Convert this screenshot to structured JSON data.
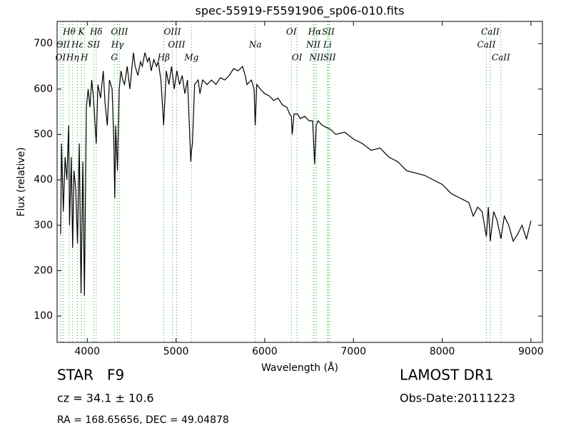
{
  "chart_data": {
    "type": "line",
    "title": "spec-55919-F5591906_sp06-010.fits",
    "x_label": "Wavelength (Å)",
    "y_label": "Flux (relative)",
    "color": "#000000",
    "line_color": "#33aa33",
    "xlim": [
      3660,
      9130
    ],
    "ylim": [
      42,
      749
    ],
    "xticks": [
      4000,
      5000,
      6000,
      7000,
      8000,
      9000
    ],
    "yticks": [
      100,
      200,
      300,
      400,
      500,
      600,
      700
    ],
    "x": [
      3700,
      3710,
      3730,
      3750,
      3770,
      3790,
      3800,
      3820,
      3835,
      3850,
      3870,
      3890,
      3910,
      3930,
      3950,
      3968,
      3990,
      4010,
      4030,
      4050,
      4070,
      4101,
      4120,
      4150,
      4180,
      4200,
      4226,
      4250,
      4280,
      4300,
      4310,
      4320,
      4340,
      4360,
      4380,
      4400,
      4420,
      4450,
      4480,
      4500,
      4520,
      4540,
      4570,
      4600,
      4620,
      4650,
      4680,
      4700,
      4720,
      4750,
      4780,
      4800,
      4830,
      4861,
      4890,
      4920,
      4950,
      4980,
      5010,
      5040,
      5070,
      5100,
      5130,
      5167,
      5172,
      5185,
      5210,
      5250,
      5270,
      5300,
      5350,
      5400,
      5450,
      5500,
      5550,
      5600,
      5650,
      5700,
      5750,
      5780,
      5800,
      5850,
      5880,
      5893,
      5910,
      5950,
      6000,
      6050,
      6100,
      6150,
      6200,
      6250,
      6280,
      6300,
      6310,
      6330,
      6370,
      6400,
      6450,
      6500,
      6540,
      6563,
      6580,
      6600,
      6650,
      6700,
      6750,
      6800,
      6900,
      7000,
      7100,
      7200,
      7300,
      7400,
      7500,
      7600,
      7700,
      7800,
      7900,
      8000,
      8100,
      8200,
      8300,
      8350,
      8400,
      8450,
      8498,
      8520,
      8542,
      8580,
      8620,
      8662,
      8700,
      8750,
      8800,
      8850,
      8900,
      8950,
      9000
    ],
    "values": [
      280,
      480,
      330,
      450,
      400,
      520,
      300,
      450,
      250,
      420,
      380,
      260,
      480,
      150,
      440,
      145,
      560,
      600,
      560,
      620,
      580,
      480,
      610,
      580,
      640,
      570,
      520,
      620,
      600,
      480,
      360,
      520,
      420,
      600,
      640,
      620,
      610,
      650,
      600,
      640,
      680,
      650,
      630,
      660,
      650,
      680,
      660,
      670,
      640,
      665,
      650,
      660,
      620,
      520,
      640,
      610,
      650,
      600,
      640,
      610,
      630,
      590,
      620,
      440,
      460,
      480,
      610,
      620,
      590,
      620,
      610,
      620,
      610,
      625,
      620,
      630,
      645,
      640,
      650,
      630,
      610,
      620,
      600,
      520,
      610,
      600,
      590,
      585,
      575,
      580,
      565,
      560,
      545,
      540,
      500,
      545,
      545,
      535,
      540,
      530,
      530,
      435,
      520,
      530,
      520,
      515,
      510,
      500,
      505,
      490,
      480,
      465,
      470,
      450,
      440,
      420,
      415,
      410,
      400,
      390,
      370,
      360,
      350,
      320,
      340,
      330,
      275,
      340,
      265,
      330,
      310,
      270,
      320,
      300,
      265,
      280,
      300,
      270,
      310
    ],
    "line_labels": [
      [
        {
          "label": "Hθ",
          "wavelength": 3797
        },
        {
          "label": "K",
          "wavelength": 3933
        },
        {
          "label": "Hδ",
          "wavelength": 4101
        },
        {
          "label": "OIII",
          "wavelength": 4363
        },
        {
          "label": "OIII",
          "wavelength": 4959
        },
        {
          "label": "OI",
          "wavelength": 6300
        },
        {
          "label": "Hα",
          "wavelength": 6563
        },
        {
          "label": "SII",
          "wavelength": 6716
        },
        {
          "label": "CaII",
          "wavelength": 8542
        }
      ],
      [
        {
          "label": "OII",
          "wavelength": 3727
        },
        {
          "label": "Hε",
          "wavelength": 3889
        },
        {
          "label": "SII",
          "wavelength": 4072
        },
        {
          "label": "Hγ",
          "wavelength": 4340
        },
        {
          "label": "OIII",
          "wavelength": 5007
        },
        {
          "label": "Na",
          "wavelength": 5893
        },
        {
          "label": "NII",
          "wavelength": 6548
        },
        {
          "label": "Li",
          "wavelength": 6708
        },
        {
          "label": "CaII",
          "wavelength": 8498
        }
      ],
      [
        {
          "label": "OI",
          "wavelength": 3700
        },
        {
          "label": "Hη",
          "wavelength": 3835
        },
        {
          "label": "H",
          "wavelength": 3968
        },
        {
          "label": "G",
          "wavelength": 4305
        },
        {
          "label": "Hβ",
          "wavelength": 4861
        },
        {
          "label": "Mg",
          "wavelength": 5175
        },
        {
          "label": "OI",
          "wavelength": 6364
        },
        {
          "label": "NII",
          "wavelength": 6583
        },
        {
          "label": "SII",
          "wavelength": 6731
        },
        {
          "label": "CaII",
          "wavelength": 8662
        }
      ]
    ],
    "footer": {
      "class": "STAR   F9",
      "cz": "cz = 34.1 ± 10.6",
      "coords": "RA = 168.65656, DEC = 49.04878",
      "survey": "LAMOST DR1",
      "obs_date": "Obs-Date:20111223"
    }
  }
}
